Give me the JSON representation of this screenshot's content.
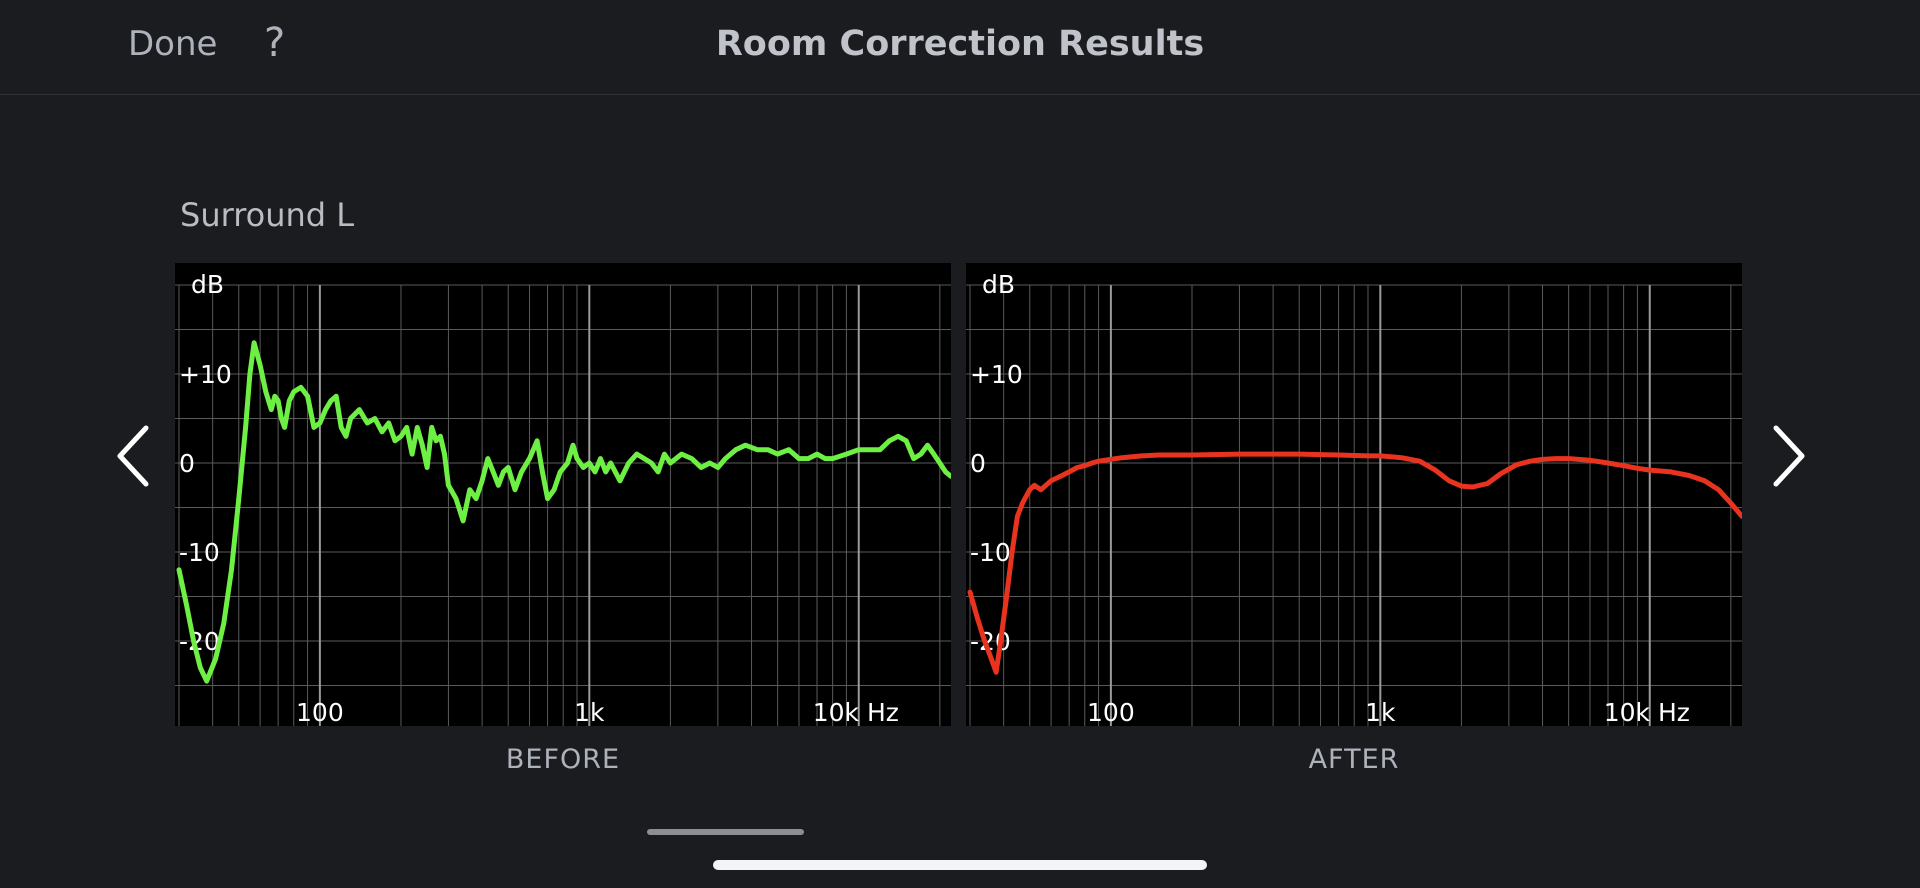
{
  "header": {
    "done_label": "Done",
    "help_label": "?",
    "title": "Room Correction Results"
  },
  "speaker": {
    "name": "Surround L"
  },
  "navigation": {
    "prev_icon": "chevron-left-icon",
    "next_icon": "chevron-right-icon"
  },
  "colors": {
    "background": "#1b1c20",
    "before_curve": "#6df043",
    "after_curve": "#e8331f",
    "grid": "#5a5a5a"
  },
  "chart_data": [
    {
      "type": "line",
      "title": "",
      "caption": "BEFORE",
      "ylabel": "dB",
      "xscale": "log",
      "xlim": [
        30,
        22000
      ],
      "ylim": [
        -27,
        20
      ],
      "yticks": [
        "+10",
        "0",
        "-10",
        "-20"
      ],
      "xticks": [
        "100",
        "1k",
        "10k Hz"
      ],
      "grid": true,
      "series": [
        {
          "color": "#6df043",
          "points": [
            [
              30,
              -12
            ],
            [
              32,
              -16
            ],
            [
              34,
              -20
            ],
            [
              36,
              -23
            ],
            [
              38,
              -24.5
            ],
            [
              41,
              -22
            ],
            [
              44,
              -18
            ],
            [
              47,
              -12
            ],
            [
              50,
              -4
            ],
            [
              53,
              4
            ],
            [
              55,
              10
            ],
            [
              57,
              13.5
            ],
            [
              60,
              11
            ],
            [
              63,
              8
            ],
            [
              66,
              6
            ],
            [
              68,
              7.5
            ],
            [
              70,
              7
            ],
            [
              72,
              5
            ],
            [
              74,
              4
            ],
            [
              77,
              7
            ],
            [
              80,
              8
            ],
            [
              85,
              8.5
            ],
            [
              90,
              7.5
            ],
            [
              95,
              4
            ],
            [
              100,
              4.5
            ],
            [
              105,
              6
            ],
            [
              110,
              7
            ],
            [
              115,
              7.5
            ],
            [
              120,
              4
            ],
            [
              125,
              3
            ],
            [
              130,
              5
            ],
            [
              140,
              6
            ],
            [
              150,
              4.5
            ],
            [
              160,
              5
            ],
            [
              170,
              3.5
            ],
            [
              180,
              4.5
            ],
            [
              190,
              2.5
            ],
            [
              200,
              3
            ],
            [
              210,
              4
            ],
            [
              220,
              1
            ],
            [
              230,
              4
            ],
            [
              240,
              2
            ],
            [
              250,
              -0.5
            ],
            [
              260,
              4
            ],
            [
              270,
              2.5
            ],
            [
              280,
              3
            ],
            [
              290,
              1
            ],
            [
              300,
              -2.5
            ],
            [
              320,
              -4
            ],
            [
              340,
              -6.5
            ],
            [
              360,
              -3
            ],
            [
              380,
              -4
            ],
            [
              400,
              -2
            ],
            [
              420,
              0.5
            ],
            [
              440,
              -1
            ],
            [
              460,
              -2.5
            ],
            [
              480,
              -1
            ],
            [
              500,
              -0.5
            ],
            [
              530,
              -3
            ],
            [
              560,
              -1
            ],
            [
              600,
              0.5
            ],
            [
              640,
              2.5
            ],
            [
              670,
              -1
            ],
            [
              700,
              -4
            ],
            [
              740,
              -3
            ],
            [
              780,
              -1
            ],
            [
              830,
              0
            ],
            [
              870,
              2
            ],
            [
              900,
              0.5
            ],
            [
              950,
              -0.5
            ],
            [
              1000,
              0
            ],
            [
              1050,
              -1
            ],
            [
              1100,
              0.5
            ],
            [
              1150,
              -1
            ],
            [
              1200,
              0
            ],
            [
              1300,
              -2
            ],
            [
              1400,
              0
            ],
            [
              1500,
              1
            ],
            [
              1600,
              0.5
            ],
            [
              1700,
              0
            ],
            [
              1800,
              -1
            ],
            [
              1900,
              1
            ],
            [
              2000,
              0
            ],
            [
              2200,
              1
            ],
            [
              2400,
              0.5
            ],
            [
              2600,
              -0.5
            ],
            [
              2800,
              0
            ],
            [
              3000,
              -0.5
            ],
            [
              3200,
              0.5
            ],
            [
              3500,
              1.5
            ],
            [
              3800,
              2
            ],
            [
              4200,
              1.5
            ],
            [
              4600,
              1.5
            ],
            [
              5000,
              1
            ],
            [
              5500,
              1.5
            ],
            [
              6000,
              0.5
            ],
            [
              6500,
              0.5
            ],
            [
              7000,
              1
            ],
            [
              7500,
              0.5
            ],
            [
              8000,
              0.5
            ],
            [
              9000,
              1
            ],
            [
              10000,
              1.5
            ],
            [
              11000,
              1.5
            ],
            [
              12000,
              1.5
            ],
            [
              13000,
              2.5
            ],
            [
              14000,
              3
            ],
            [
              15000,
              2.5
            ],
            [
              16000,
              0.5
            ],
            [
              17000,
              1
            ],
            [
              18000,
              2
            ],
            [
              19000,
              1
            ],
            [
              20000,
              0
            ],
            [
              21000,
              -1
            ],
            [
              22000,
              -1.5
            ]
          ]
        }
      ]
    },
    {
      "type": "line",
      "title": "",
      "caption": "AFTER",
      "ylabel": "dB",
      "xscale": "log",
      "xlim": [
        30,
        22000
      ],
      "ylim": [
        -27,
        20
      ],
      "yticks": [
        "+10",
        "0",
        "-10",
        "-20"
      ],
      "xticks": [
        "100",
        "1k",
        "10k Hz"
      ],
      "grid": true,
      "series": [
        {
          "color": "#e8331f",
          "points": [
            [
              30,
              -14.5
            ],
            [
              32,
              -17.5
            ],
            [
              34,
              -20
            ],
            [
              36,
              -22
            ],
            [
              37.5,
              -23.5
            ],
            [
              39,
              -20
            ],
            [
              41,
              -15
            ],
            [
              43,
              -10
            ],
            [
              45,
              -6
            ],
            [
              47,
              -4.5
            ],
            [
              50,
              -3
            ],
            [
              52,
              -2.5
            ],
            [
              55,
              -3
            ],
            [
              60,
              -2
            ],
            [
              65,
              -1.5
            ],
            [
              70,
              -1
            ],
            [
              75,
              -0.5
            ],
            [
              80,
              -0.3
            ],
            [
              85,
              0
            ],
            [
              90,
              0.2
            ],
            [
              100,
              0.4
            ],
            [
              110,
              0.6
            ],
            [
              130,
              0.8
            ],
            [
              150,
              0.9
            ],
            [
              200,
              0.9
            ],
            [
              300,
              1
            ],
            [
              500,
              1
            ],
            [
              700,
              0.9
            ],
            [
              900,
              0.8
            ],
            [
              1000,
              0.8
            ],
            [
              1200,
              0.6
            ],
            [
              1400,
              0.2
            ],
            [
              1600,
              -0.8
            ],
            [
              1800,
              -2
            ],
            [
              2000,
              -2.6
            ],
            [
              2200,
              -2.7
            ],
            [
              2500,
              -2.3
            ],
            [
              2800,
              -1.2
            ],
            [
              3200,
              -0.2
            ],
            [
              3600,
              0.2
            ],
            [
              4000,
              0.4
            ],
            [
              4500,
              0.5
            ],
            [
              5000,
              0.5
            ],
            [
              6000,
              0.3
            ],
            [
              7000,
              0
            ],
            [
              8000,
              -0.3
            ],
            [
              9000,
              -0.6
            ],
            [
              10000,
              -0.8
            ],
            [
              12000,
              -1
            ],
            [
              14000,
              -1.4
            ],
            [
              16000,
              -2
            ],
            [
              18000,
              -3
            ],
            [
              20000,
              -4.5
            ],
            [
              22000,
              -6
            ]
          ]
        }
      ]
    }
  ]
}
